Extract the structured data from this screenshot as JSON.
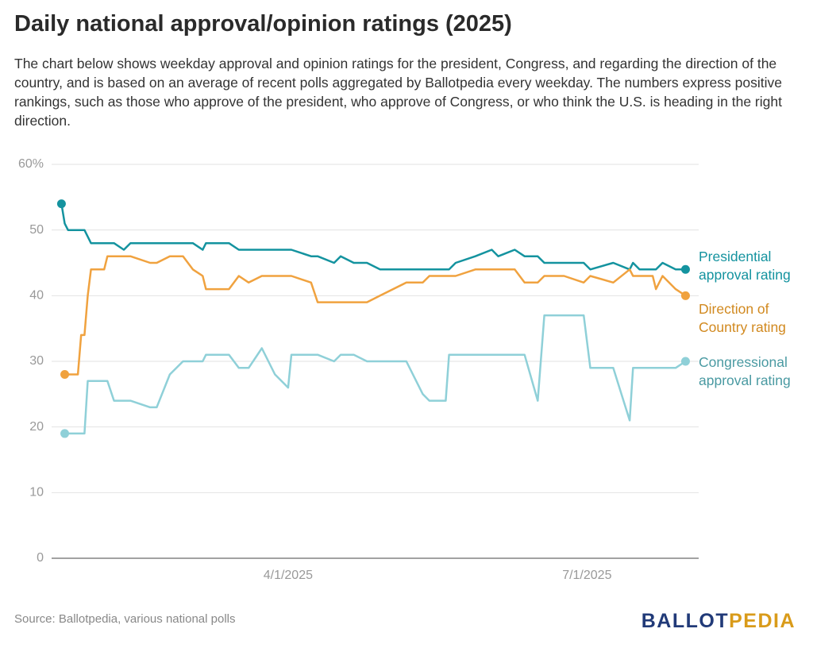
{
  "chart_data": {
    "type": "line",
    "title": "Daily national approval/opinion ratings (2025)",
    "subtitle": "The chart below shows weekday approval and opinion ratings for the president, Congress, and regarding the direction of the country, and is based on an average of recent polls aggregated by Ballotpedia every weekday. The numbers express positive rankings, such as those who approve of the president, who approve of Congress, or who think the U.S. is heading in the right direction.",
    "source": "Source: Ballotpedia, various national polls",
    "brand": [
      "BALLOT",
      "PEDIA"
    ],
    "x": [
      "1/22/2025",
      "1/23/2025",
      "1/24/2025",
      "1/27/2025",
      "1/28/2025",
      "1/29/2025",
      "1/30/2025",
      "1/31/2025",
      "2/4/2025",
      "2/5/2025",
      "2/7/2025",
      "2/10/2025",
      "2/12/2025",
      "2/18/2025",
      "2/20/2025",
      "2/24/2025",
      "2/28/2025",
      "3/3/2025",
      "3/6/2025",
      "3/7/2025",
      "3/14/2025",
      "3/17/2025",
      "3/20/2025",
      "3/24/2025",
      "3/28/2025",
      "4/1/2025",
      "4/2/2025",
      "4/8/2025",
      "4/10/2025",
      "4/15/2025",
      "4/17/2025",
      "4/21/2025",
      "4/25/2025",
      "4/29/2025",
      "5/7/2025",
      "5/12/2025",
      "5/14/2025",
      "5/19/2025",
      "5/20/2025",
      "5/22/2025",
      "5/28/2025",
      "6/2/2025",
      "6/4/2025",
      "6/9/2025",
      "6/12/2025",
      "6/16/2025",
      "6/18/2025",
      "6/24/2025",
      "6/30/2025",
      "7/2/2025",
      "7/9/2025",
      "7/14/2025",
      "7/15/2025",
      "7/17/2025",
      "7/21/2025",
      "7/22/2025",
      "7/24/2025",
      "7/28/2025",
      "7/31/2025"
    ],
    "series": [
      {
        "name": "Presidential approval rating",
        "color": "#14939f",
        "values": [
          54,
          51,
          50,
          50,
          50,
          50,
          49,
          48,
          48,
          48,
          48,
          47,
          48,
          48,
          48,
          48,
          48,
          48,
          47,
          48,
          48,
          47,
          47,
          47,
          47,
          47,
          47,
          46,
          46,
          45,
          46,
          45,
          45,
          44,
          44,
          44,
          44,
          44,
          44,
          45,
          46,
          47,
          46,
          47,
          46,
          46,
          45,
          45,
          45,
          44,
          45,
          44,
          45,
          44,
          44,
          44,
          45,
          44,
          44
        ]
      },
      {
        "name": "Direction of Country rating",
        "color": "#f0a23f",
        "values": [
          null,
          28,
          28,
          28,
          34,
          34,
          40,
          44,
          44,
          46,
          46,
          46,
          46,
          45,
          45,
          46,
          46,
          44,
          43,
          41,
          41,
          43,
          42,
          43,
          43,
          43,
          43,
          42,
          39,
          39,
          39,
          39,
          39,
          40,
          42,
          42,
          43,
          43,
          43,
          43,
          44,
          44,
          44,
          44,
          42,
          42,
          43,
          43,
          42,
          43,
          42,
          44,
          43,
          43,
          43,
          41,
          43,
          41,
          40
        ]
      },
      {
        "name": "Congressional approval rating",
        "color": "#8fd0d8",
        "values": [
          null,
          19,
          19,
          19,
          19,
          19,
          27,
          27,
          27,
          27,
          24,
          24,
          24,
          23,
          23,
          28,
          30,
          30,
          30,
          31,
          31,
          29,
          29,
          32,
          28,
          26,
          31,
          31,
          31,
          30,
          31,
          31,
          30,
          30,
          30,
          25,
          24,
          24,
          31,
          31,
          31,
          31,
          31,
          31,
          31,
          24,
          37,
          37,
          37,
          29,
          29,
          21,
          29,
          29,
          29,
          29,
          29,
          29,
          30
        ]
      }
    ],
    "xlim": [
      "1/19/2025",
      "8/4/2025"
    ],
    "xticks": [
      "4/1/2025",
      "7/1/2025"
    ],
    "ylim": [
      0,
      60
    ],
    "yticks": [
      0,
      10,
      20,
      30,
      40,
      {
        "value": 60,
        "label": "60%"
      },
      50
    ],
    "grid": true
  }
}
